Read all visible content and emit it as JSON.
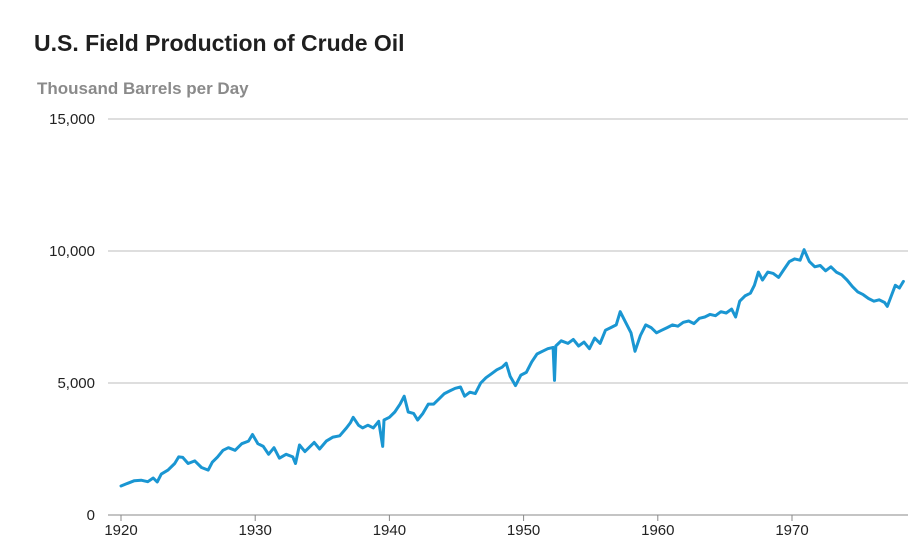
{
  "chart_data": {
    "type": "line",
    "title": "U.S. Field Production of Crude Oil",
    "subtitle": "Thousand Barrels per Day",
    "xlabel": "",
    "ylabel": "",
    "xlim": [
      1919,
      1978.5
    ],
    "ylim": [
      0,
      15000
    ],
    "x_ticks": [
      1920,
      1930,
      1940,
      1950,
      1960,
      1970
    ],
    "x_tick_labels": [
      "1920",
      "1930",
      "1940",
      "1950",
      "1960",
      "1970"
    ],
    "y_ticks": [
      0,
      5000,
      10000,
      15000
    ],
    "y_tick_labels": [
      "0",
      "5,000",
      "10,000",
      "15,000"
    ],
    "grid": "horizontal",
    "line_color": "#1a96d2",
    "grid_color": "#bdbdbd",
    "series": [
      {
        "values": [
          [
            1920.0,
            1100
          ],
          [
            1920.5,
            1200
          ],
          [
            1921.0,
            1300
          ],
          [
            1921.5,
            1320
          ],
          [
            1922.0,
            1260
          ],
          [
            1922.4,
            1400
          ],
          [
            1922.7,
            1250
          ],
          [
            1923.0,
            1550
          ],
          [
            1923.5,
            1700
          ],
          [
            1924.0,
            1950
          ],
          [
            1924.3,
            2200
          ],
          [
            1924.6,
            2180
          ],
          [
            1925.0,
            1950
          ],
          [
            1925.5,
            2050
          ],
          [
            1926.0,
            1800
          ],
          [
            1926.5,
            1700
          ],
          [
            1926.8,
            2000
          ],
          [
            1927.2,
            2200
          ],
          [
            1927.6,
            2450
          ],
          [
            1928.0,
            2550
          ],
          [
            1928.5,
            2450
          ],
          [
            1929.0,
            2700
          ],
          [
            1929.5,
            2800
          ],
          [
            1929.8,
            3050
          ],
          [
            1930.2,
            2700
          ],
          [
            1930.6,
            2600
          ],
          [
            1931.0,
            2300
          ],
          [
            1931.4,
            2550
          ],
          [
            1931.8,
            2150
          ],
          [
            1932.3,
            2300
          ],
          [
            1932.8,
            2200
          ],
          [
            1933.0,
            1950
          ],
          [
            1933.3,
            2650
          ],
          [
            1933.7,
            2400
          ],
          [
            1934.0,
            2550
          ],
          [
            1934.4,
            2750
          ],
          [
            1934.8,
            2500
          ],
          [
            1935.3,
            2800
          ],
          [
            1935.8,
            2950
          ],
          [
            1936.3,
            3000
          ],
          [
            1936.8,
            3300
          ],
          [
            1937.1,
            3500
          ],
          [
            1937.3,
            3700
          ],
          [
            1937.7,
            3400
          ],
          [
            1938.0,
            3300
          ],
          [
            1938.4,
            3400
          ],
          [
            1938.8,
            3300
          ],
          [
            1939.2,
            3550
          ],
          [
            1939.5,
            2600
          ],
          [
            1939.6,
            3600
          ],
          [
            1940.0,
            3700
          ],
          [
            1940.4,
            3900
          ],
          [
            1940.8,
            4200
          ],
          [
            1941.1,
            4500
          ],
          [
            1941.4,
            3900
          ],
          [
            1941.8,
            3850
          ],
          [
            1942.1,
            3600
          ],
          [
            1942.5,
            3850
          ],
          [
            1942.9,
            4200
          ],
          [
            1943.3,
            4200
          ],
          [
            1943.7,
            4400
          ],
          [
            1944.1,
            4600
          ],
          [
            1944.5,
            4700
          ],
          [
            1944.9,
            4800
          ],
          [
            1945.3,
            4850
          ],
          [
            1945.6,
            4500
          ],
          [
            1946.0,
            4650
          ],
          [
            1946.4,
            4600
          ],
          [
            1946.8,
            5000
          ],
          [
            1947.2,
            5200
          ],
          [
            1947.6,
            5350
          ],
          [
            1948.0,
            5500
          ],
          [
            1948.4,
            5600
          ],
          [
            1948.7,
            5750
          ],
          [
            1949.0,
            5250
          ],
          [
            1949.4,
            4900
          ],
          [
            1949.8,
            5300
          ],
          [
            1950.2,
            5400
          ],
          [
            1950.6,
            5800
          ],
          [
            1951.0,
            6100
          ],
          [
            1951.4,
            6200
          ],
          [
            1951.8,
            6300
          ],
          [
            1952.2,
            6350
          ],
          [
            1952.3,
            5100
          ],
          [
            1952.4,
            6400
          ],
          [
            1952.8,
            6600
          ],
          [
            1953.3,
            6500
          ],
          [
            1953.7,
            6650
          ],
          [
            1954.1,
            6400
          ],
          [
            1954.5,
            6550
          ],
          [
            1954.9,
            6300
          ],
          [
            1955.3,
            6700
          ],
          [
            1955.7,
            6500
          ],
          [
            1956.1,
            7000
          ],
          [
            1956.5,
            7100
          ],
          [
            1956.9,
            7200
          ],
          [
            1957.2,
            7700
          ],
          [
            1957.6,
            7300
          ],
          [
            1958.0,
            6900
          ],
          [
            1958.3,
            6200
          ],
          [
            1958.7,
            6800
          ],
          [
            1959.1,
            7200
          ],
          [
            1959.5,
            7100
          ],
          [
            1959.9,
            6900
          ],
          [
            1960.3,
            7000
          ],
          [
            1960.7,
            7100
          ],
          [
            1961.1,
            7200
          ],
          [
            1961.5,
            7150
          ],
          [
            1961.9,
            7300
          ],
          [
            1962.3,
            7350
          ],
          [
            1962.7,
            7250
          ],
          [
            1963.1,
            7450
          ],
          [
            1963.5,
            7500
          ],
          [
            1963.9,
            7600
          ],
          [
            1964.3,
            7550
          ],
          [
            1964.7,
            7700
          ],
          [
            1965.1,
            7650
          ],
          [
            1965.5,
            7800
          ],
          [
            1965.8,
            7500
          ],
          [
            1966.1,
            8100
          ],
          [
            1966.5,
            8300
          ],
          [
            1966.9,
            8400
          ],
          [
            1967.2,
            8700
          ],
          [
            1967.5,
            9200
          ],
          [
            1967.8,
            8900
          ],
          [
            1968.2,
            9200
          ],
          [
            1968.6,
            9150
          ],
          [
            1969.0,
            9000
          ],
          [
            1969.4,
            9300
          ],
          [
            1969.8,
            9600
          ],
          [
            1970.2,
            9700
          ],
          [
            1970.6,
            9650
          ],
          [
            1970.9,
            10050
          ],
          [
            1971.3,
            9600
          ],
          [
            1971.7,
            9400
          ],
          [
            1972.1,
            9450
          ],
          [
            1972.5,
            9250
          ],
          [
            1972.9,
            9400
          ],
          [
            1973.3,
            9200
          ],
          [
            1973.7,
            9100
          ],
          [
            1974.1,
            8900
          ],
          [
            1974.5,
            8650
          ],
          [
            1974.9,
            8450
          ],
          [
            1975.3,
            8350
          ],
          [
            1975.7,
            8200
          ],
          [
            1976.1,
            8100
          ],
          [
            1976.5,
            8150
          ],
          [
            1976.9,
            8050
          ],
          [
            1977.1,
            7900
          ],
          [
            1977.4,
            8300
          ],
          [
            1977.7,
            8700
          ],
          [
            1978.0,
            8600
          ],
          [
            1978.3,
            8850
          ]
        ]
      }
    ]
  }
}
